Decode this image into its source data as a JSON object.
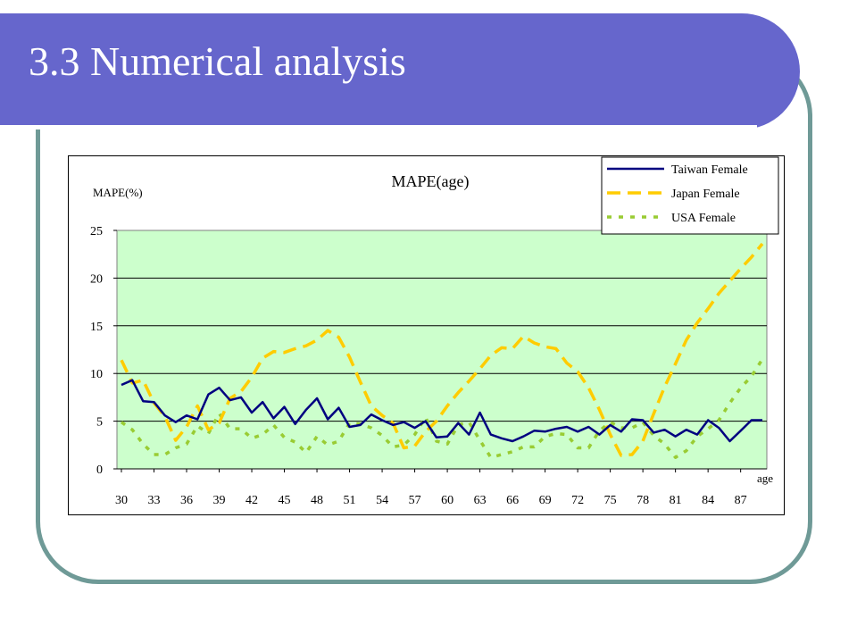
{
  "slide": {
    "title": "3.3 Numerical analysis"
  },
  "chart_data": {
    "type": "line",
    "title": "MAPE(age)",
    "ylabel": "MAPE(%)",
    "xlabel": "age",
    "ylim": [
      0,
      25
    ],
    "yticks": [
      0,
      5,
      10,
      15,
      20,
      25
    ],
    "xticks": [
      30,
      33,
      36,
      39,
      42,
      45,
      48,
      51,
      54,
      57,
      60,
      63,
      66,
      69,
      72,
      75,
      78,
      81,
      84,
      87
    ],
    "grid": true,
    "legend_position": "top-right",
    "plot_background": "#ccffcc",
    "x": [
      30,
      31,
      32,
      33,
      34,
      35,
      36,
      37,
      38,
      39,
      40,
      41,
      42,
      43,
      44,
      45,
      46,
      47,
      48,
      49,
      50,
      51,
      52,
      53,
      54,
      55,
      56,
      57,
      58,
      59,
      60,
      61,
      62,
      63,
      64,
      65,
      66,
      67,
      68,
      69,
      70,
      71,
      72,
      73,
      74,
      75,
      76,
      77,
      78,
      79,
      80,
      81,
      82,
      83,
      84,
      85,
      86,
      87,
      88,
      89
    ],
    "series": [
      {
        "name": "Taiwan Female",
        "color": "#000080",
        "style": "solid",
        "values": [
          8.8,
          9.3,
          7.1,
          7.0,
          5.6,
          4.9,
          5.6,
          5.2,
          7.8,
          8.5,
          7.2,
          7.5,
          5.9,
          7.0,
          5.3,
          6.5,
          4.7,
          6.2,
          7.4,
          5.2,
          6.4,
          4.4,
          4.6,
          5.7,
          5.1,
          4.6,
          4.9,
          4.3,
          5.0,
          3.3,
          3.4,
          4.8,
          3.6,
          5.9,
          3.6,
          3.2,
          2.9,
          3.4,
          4.0,
          3.9,
          4.2,
          4.4,
          3.9,
          4.4,
          3.6,
          4.6,
          3.9,
          5.2,
          5.1,
          3.8,
          4.1,
          3.4,
          4.1,
          3.6,
          5.1,
          4.3,
          2.9,
          4.0,
          5.1,
          5.1
        ]
      },
      {
        "name": "Japan Female",
        "color": "#ffcc00",
        "style": "dashed",
        "values": [
          11.4,
          9.0,
          9.3,
          6.9,
          5.5,
          3.0,
          4.4,
          6.6,
          4.1,
          4.8,
          7.4,
          8.1,
          9.6,
          11.6,
          12.3,
          12.2,
          12.6,
          12.9,
          13.5,
          14.5,
          13.8,
          11.7,
          9.1,
          6.6,
          5.6,
          4.8,
          2.2,
          2.4,
          3.9,
          5.0,
          6.6,
          8.0,
          9.2,
          10.5,
          11.9,
          12.7,
          12.6,
          13.9,
          13.2,
          12.8,
          12.6,
          11.1,
          10.2,
          8.5,
          6.2,
          3.6,
          1.4,
          1.5,
          2.9,
          5.8,
          8.6,
          11.0,
          13.5,
          15.3,
          16.8,
          18.4,
          19.7,
          21.0,
          22.2,
          23.6
        ]
      },
      {
        "name": "USA Female",
        "color": "#99cc33",
        "style": "dotted",
        "values": [
          4.9,
          4.1,
          2.6,
          1.5,
          1.5,
          2.2,
          2.6,
          4.5,
          3.7,
          5.8,
          4.2,
          4.2,
          3.2,
          3.6,
          4.6,
          3.3,
          2.8,
          1.7,
          3.4,
          2.5,
          2.9,
          4.8,
          4.7,
          4.3,
          3.5,
          2.3,
          2.5,
          3.6,
          5.4,
          2.9,
          2.6,
          4.6,
          4.9,
          3.0,
          1.2,
          1.5,
          1.8,
          2.3,
          2.3,
          3.4,
          3.7,
          3.6,
          2.2,
          2.2,
          4.0,
          4.9,
          4.3,
          4.3,
          4.9,
          3.5,
          2.6,
          1.2,
          1.9,
          3.4,
          4.2,
          5.1,
          6.9,
          8.5,
          9.7,
          11.5
        ]
      }
    ]
  }
}
